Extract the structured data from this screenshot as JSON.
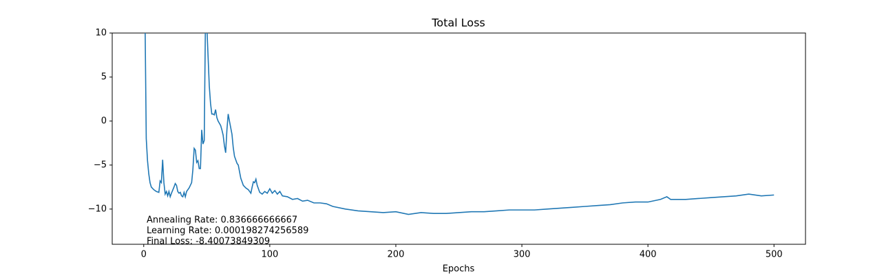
{
  "chart_data": {
    "type": "line",
    "title": "Total Loss",
    "xlabel": "Epochs",
    "color": "#1f77b4",
    "annotations": [
      "Annealing Rate: 0.836666666667",
      "Learning Rate: 0.000198274256589",
      "Final Loss: -8.40073849309"
    ],
    "xlim": [
      -25,
      525
    ],
    "xticks": [
      0,
      100,
      200,
      300,
      400,
      500
    ],
    "ylim": [
      -14,
      10
    ],
    "yticks": [
      {
        "value": -10,
        "label": "−10"
      },
      {
        "value": -5,
        "label": "−5"
      },
      0,
      5,
      10
    ],
    "x": [
      1,
      2,
      3,
      4,
      5,
      6,
      8,
      10,
      12,
      13,
      14,
      15,
      16,
      17,
      18,
      19,
      20,
      21,
      22,
      24,
      25,
      26,
      27,
      28,
      29,
      30,
      31,
      32,
      33,
      34,
      36,
      38,
      39,
      40,
      41,
      42,
      43,
      44,
      45,
      46,
      47,
      48,
      49,
      50,
      51,
      52,
      53,
      54,
      55,
      56,
      57,
      58,
      59,
      61,
      62,
      63,
      64,
      65,
      66,
      67,
      68,
      70,
      71,
      72,
      74,
      75,
      77,
      79,
      81,
      83,
      85,
      86,
      87,
      88,
      89,
      90,
      92,
      94,
      96,
      98,
      100,
      102,
      104,
      106,
      108,
      110,
      114,
      118,
      122,
      126,
      130,
      135,
      140,
      145,
      150,
      160,
      170,
      180,
      190,
      200,
      210,
      220,
      230,
      240,
      250,
      260,
      270,
      280,
      290,
      300,
      310,
      320,
      330,
      340,
      350,
      360,
      370,
      380,
      390,
      400,
      410,
      415,
      418,
      430,
      440,
      450,
      460,
      470,
      480,
      490,
      500
    ],
    "values": [
      12,
      -2,
      -4.5,
      -6,
      -7,
      -7.5,
      -7.8,
      -8,
      -8.1,
      -6.8,
      -7,
      -4.4,
      -7,
      -8.3,
      -8,
      -8.5,
      -8,
      -8.6,
      -8.2,
      -7.5,
      -7.1,
      -7.3,
      -8,
      -8.2,
      -8.1,
      -8.5,
      -8.6,
      -8.1,
      -8.6,
      -8,
      -7.6,
      -7,
      -5.5,
      -3.1,
      -3.3,
      -4.7,
      -4.5,
      -5.4,
      -5.4,
      -1,
      -2.6,
      -2.2,
      12,
      11,
      7.5,
      4,
      2,
      0.8,
      0.8,
      0.7,
      1.3,
      0.4,
      0,
      -0.5,
      -1,
      -1.6,
      -2.8,
      -3.6,
      -1,
      0.8,
      0,
      -1.5,
      -3,
      -4,
      -4.8,
      -5,
      -6.5,
      -7.3,
      -7.6,
      -7.8,
      -8.2,
      -7.5,
      -6.9,
      -7,
      -6.6,
      -7.3,
      -8.1,
      -8.3,
      -8,
      -8.2,
      -7.7,
      -8.2,
      -7.9,
      -8.3,
      -8,
      -8.5,
      -8.6,
      -8.9,
      -8.8,
      -9.1,
      -9,
      -9.3,
      -9.3,
      -9.4,
      -9.7,
      -10,
      -10.2,
      -10.3,
      -10.4,
      -10.3,
      -10.6,
      -10.4,
      -10.5,
      -10.5,
      -10.4,
      -10.3,
      -10.3,
      -10.2,
      -10.1,
      -10.1,
      -10.1,
      -10,
      -9.9,
      -9.8,
      -9.7,
      -9.6,
      -9.5,
      -9.3,
      -9.2,
      -9.2,
      -8.9,
      -8.6,
      -8.9,
      -8.9,
      -8.8,
      -8.7,
      -8.6,
      -8.5,
      -8.3,
      -8.5,
      -8.4
    ]
  }
}
